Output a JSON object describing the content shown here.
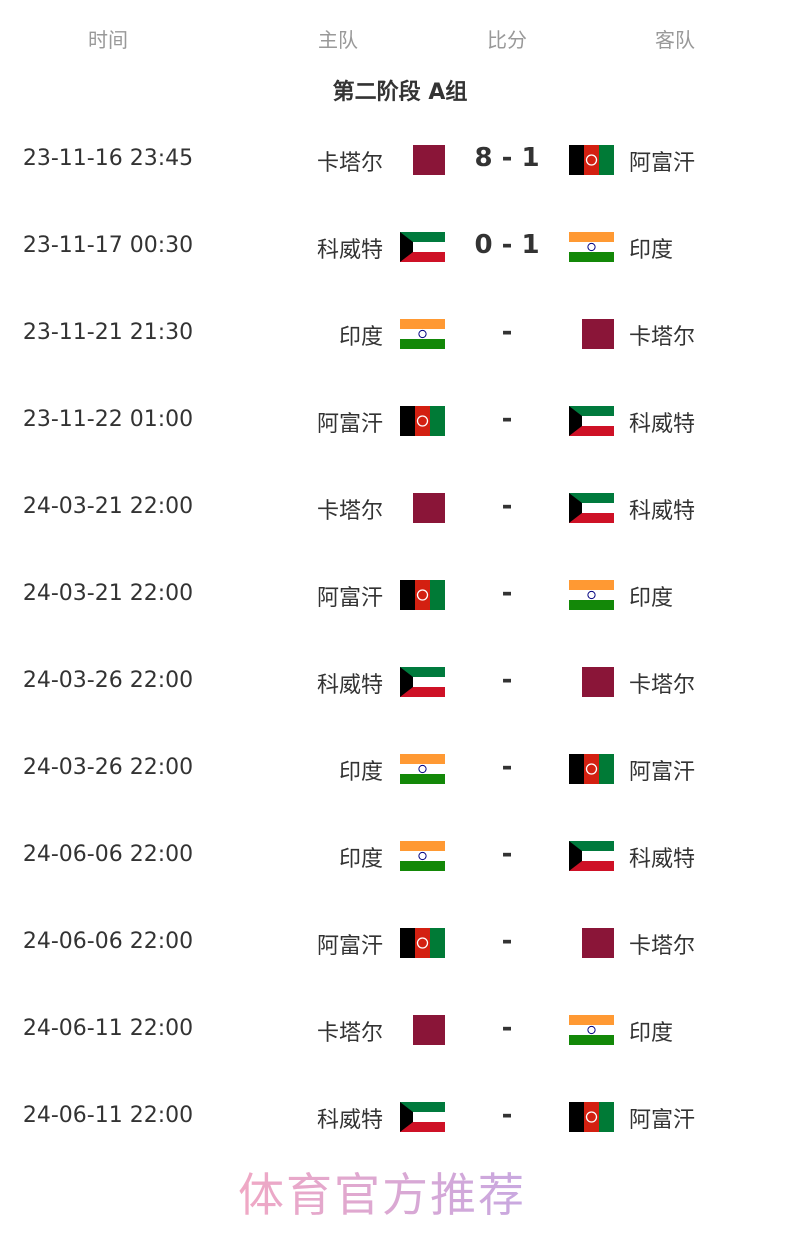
{
  "header": {
    "time": "时间",
    "home": "主队",
    "score": "比分",
    "away": "客队"
  },
  "group_title": "第二阶段 A组",
  "matches": [
    {
      "time": "23-11-16 23:45",
      "home": "卡塔尔",
      "home_flag": "qatar",
      "score": "8 - 1",
      "away": "阿富汗",
      "away_flag": "afghanistan"
    },
    {
      "time": "23-11-17 00:30",
      "home": "科威特",
      "home_flag": "kuwait",
      "score": "0 - 1",
      "away": "印度",
      "away_flag": "india"
    },
    {
      "time": "23-11-21 21:30",
      "home": "印度",
      "home_flag": "india",
      "score": "-",
      "away": "卡塔尔",
      "away_flag": "qatar"
    },
    {
      "time": "23-11-22 01:00",
      "home": "阿富汗",
      "home_flag": "afghanistan",
      "score": "-",
      "away": "科威特",
      "away_flag": "kuwait"
    },
    {
      "time": "24-03-21 22:00",
      "home": "卡塔尔",
      "home_flag": "qatar",
      "score": "-",
      "away": "科威特",
      "away_flag": "kuwait"
    },
    {
      "time": "24-03-21 22:00",
      "home": "阿富汗",
      "home_flag": "afghanistan",
      "score": "-",
      "away": "印度",
      "away_flag": "india"
    },
    {
      "time": "24-03-26 22:00",
      "home": "科威特",
      "home_flag": "kuwait",
      "score": "-",
      "away": "卡塔尔",
      "away_flag": "qatar"
    },
    {
      "time": "24-03-26 22:00",
      "home": "印度",
      "home_flag": "india",
      "score": "-",
      "away": "阿富汗",
      "away_flag": "afghanistan"
    },
    {
      "time": "24-06-06 22:00",
      "home": "印度",
      "home_flag": "india",
      "score": "-",
      "away": "科威特",
      "away_flag": "kuwait"
    },
    {
      "time": "24-06-06 22:00",
      "home": "阿富汗",
      "home_flag": "afghanistan",
      "score": "-",
      "away": "卡塔尔",
      "away_flag": "qatar"
    },
    {
      "time": "24-06-11 22:00",
      "home": "卡塔尔",
      "home_flag": "qatar",
      "score": "-",
      "away": "印度",
      "away_flag": "india"
    },
    {
      "time": "24-06-11 22:00",
      "home": "科威特",
      "home_flag": "kuwait",
      "score": "-",
      "away": "阿富汗",
      "away_flag": "afghanistan"
    }
  ],
  "watermark": "体育官方推荐"
}
